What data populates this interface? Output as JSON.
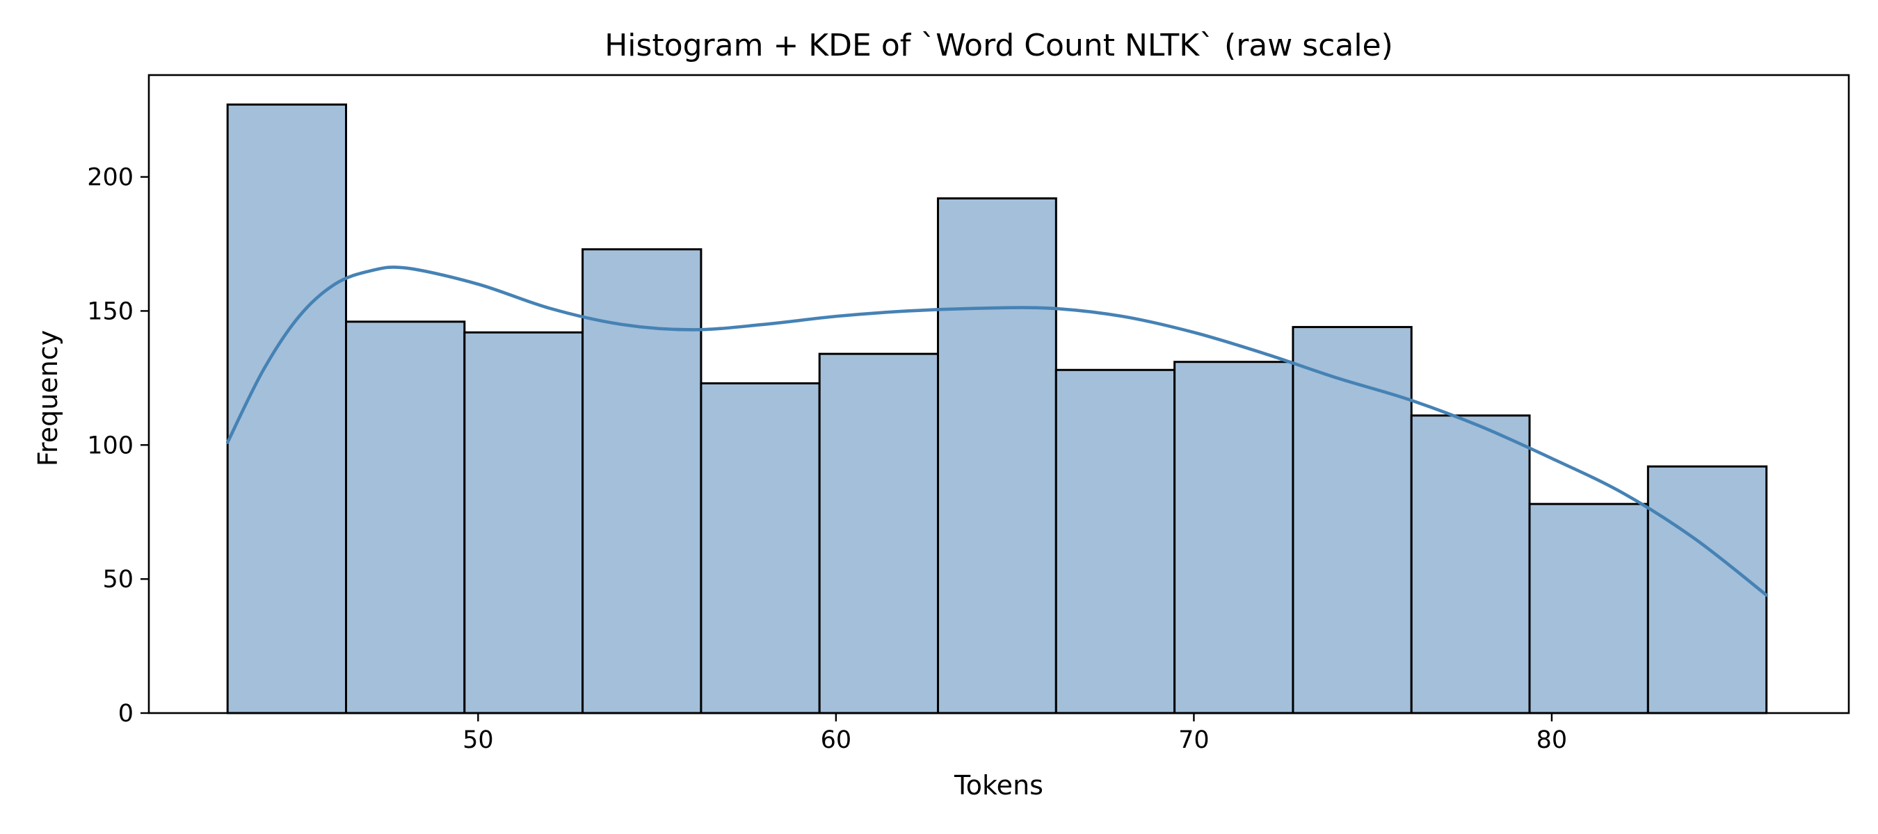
{
  "chart_data": {
    "type": "bar",
    "subtype": "histogram_with_kde",
    "title": "Histogram + KDE of `Word Count NLTK` (raw scale)",
    "xlabel": "Tokens",
    "ylabel": "Frequency",
    "xlim": [
      40.8,
      88.3
    ],
    "ylim": [
      0,
      238
    ],
    "xticks": [
      50,
      60,
      70,
      80
    ],
    "yticks": [
      0,
      50,
      100,
      150,
      200
    ],
    "grid": false,
    "legend": "none",
    "bin_edges": [
      43.0,
      46.31,
      49.62,
      52.92,
      56.23,
      59.54,
      62.85,
      66.15,
      69.46,
      72.77,
      76.08,
      79.38,
      82.69,
      86.0
    ],
    "values": [
      227,
      146,
      142,
      173,
      123,
      134,
      192,
      128,
      131,
      144,
      111,
      78,
      92
    ],
    "kde": {
      "x": [
        43.0,
        44.0,
        45.0,
        46.0,
        47.0,
        48.0,
        50.0,
        52.0,
        54.0,
        56.0,
        58.0,
        60.0,
        62.0,
        64.0,
        66.0,
        68.0,
        70.0,
        72.0,
        74.0,
        76.0,
        78.0,
        80.0,
        82.0,
        84.0,
        86.0
      ],
      "y": [
        101,
        128,
        148,
        160,
        165,
        166,
        160,
        151,
        145,
        143,
        145,
        148,
        150,
        151,
        151,
        148,
        142,
        134,
        125,
        117,
        107,
        95,
        82,
        65,
        44
      ]
    },
    "colors": {
      "bar_fill": "#a3bfda",
      "bar_edge": "#000000",
      "kde_line": "#4682b4"
    }
  }
}
